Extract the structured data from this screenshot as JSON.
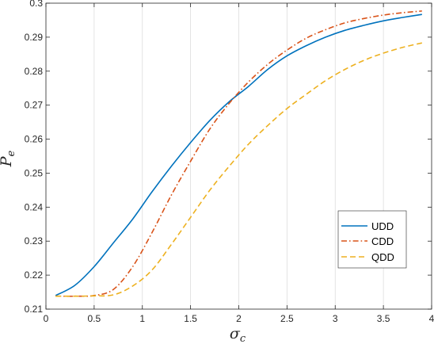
{
  "chart_data": {
    "type": "line",
    "title": "",
    "xlabel": "σ",
    "xlabel_sub": "c",
    "ylabel": "P",
    "ylabel_sub": "e",
    "xlim": [
      0,
      4
    ],
    "ylim": [
      0.21,
      0.3
    ],
    "x_ticks": [
      0,
      0.5,
      1,
      1.5,
      2,
      2.5,
      3,
      3.5,
      4
    ],
    "x_tick_labels": [
      "0",
      "0.5",
      "1",
      "1.5",
      "2",
      "2.5",
      "3",
      "3.5",
      "4"
    ],
    "y_ticks": [
      0.21,
      0.22,
      0.23,
      0.24,
      0.25,
      0.26,
      0.27,
      0.28,
      0.29,
      0.3
    ],
    "y_tick_labels": [
      "0.21",
      "0.22",
      "0.23",
      "0.24",
      "0.25",
      "0.26",
      "0.27",
      "0.28",
      "0.29",
      "0.3"
    ],
    "grid": "vertical",
    "legend_position": "bottom-right",
    "series": [
      {
        "name": "UDD",
        "color": "#0072BD",
        "style": "solid",
        "x": [
          0.1,
          0.3,
          0.5,
          0.7,
          0.9,
          1.1,
          1.3,
          1.5,
          1.7,
          1.9,
          2.1,
          2.3,
          2.5,
          2.7,
          2.9,
          3.1,
          3.3,
          3.5,
          3.7,
          3.9
        ],
        "y": [
          0.214,
          0.217,
          0.2225,
          0.2295,
          0.2365,
          0.2445,
          0.252,
          0.259,
          0.2655,
          0.271,
          0.2755,
          0.2805,
          0.2845,
          0.2875,
          0.29,
          0.292,
          0.2935,
          0.2948,
          0.2958,
          0.2967
        ]
      },
      {
        "name": "CDD",
        "color": "#D95319",
        "style": "dashdot",
        "x": [
          0.1,
          0.3,
          0.5,
          0.7,
          0.9,
          1.1,
          1.3,
          1.5,
          1.7,
          1.9,
          2.1,
          2.3,
          2.5,
          2.7,
          2.9,
          3.1,
          3.3,
          3.5,
          3.7,
          3.9
        ],
        "y": [
          0.2138,
          0.2138,
          0.214,
          0.2158,
          0.2225,
          0.2325,
          0.2435,
          0.2535,
          0.263,
          0.2705,
          0.2768,
          0.282,
          0.2862,
          0.2897,
          0.2922,
          0.2942,
          0.2955,
          0.2965,
          0.2972,
          0.2977
        ]
      },
      {
        "name": "QDD",
        "color": "#EDB120",
        "style": "dashed",
        "x": [
          0.1,
          0.3,
          0.5,
          0.7,
          0.9,
          1.1,
          1.3,
          1.5,
          1.7,
          1.9,
          2.1,
          2.3,
          2.5,
          2.7,
          2.9,
          3.1,
          3.3,
          3.5,
          3.7,
          3.9
        ],
        "y": [
          0.2138,
          0.2138,
          0.2139,
          0.2142,
          0.2168,
          0.2215,
          0.229,
          0.237,
          0.245,
          0.252,
          0.2585,
          0.264,
          0.269,
          0.2732,
          0.2772,
          0.2805,
          0.2832,
          0.2853,
          0.287,
          0.2883
        ]
      }
    ]
  }
}
